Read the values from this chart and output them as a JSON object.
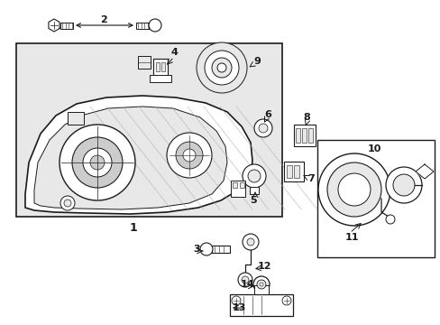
{
  "bg_color": "#ffffff",
  "line_color": "#1a1a1a",
  "gray_fill": "#e8e8e8",
  "white": "#ffffff",
  "mid_gray": "#cccccc",
  "dark_line": "#111111"
}
